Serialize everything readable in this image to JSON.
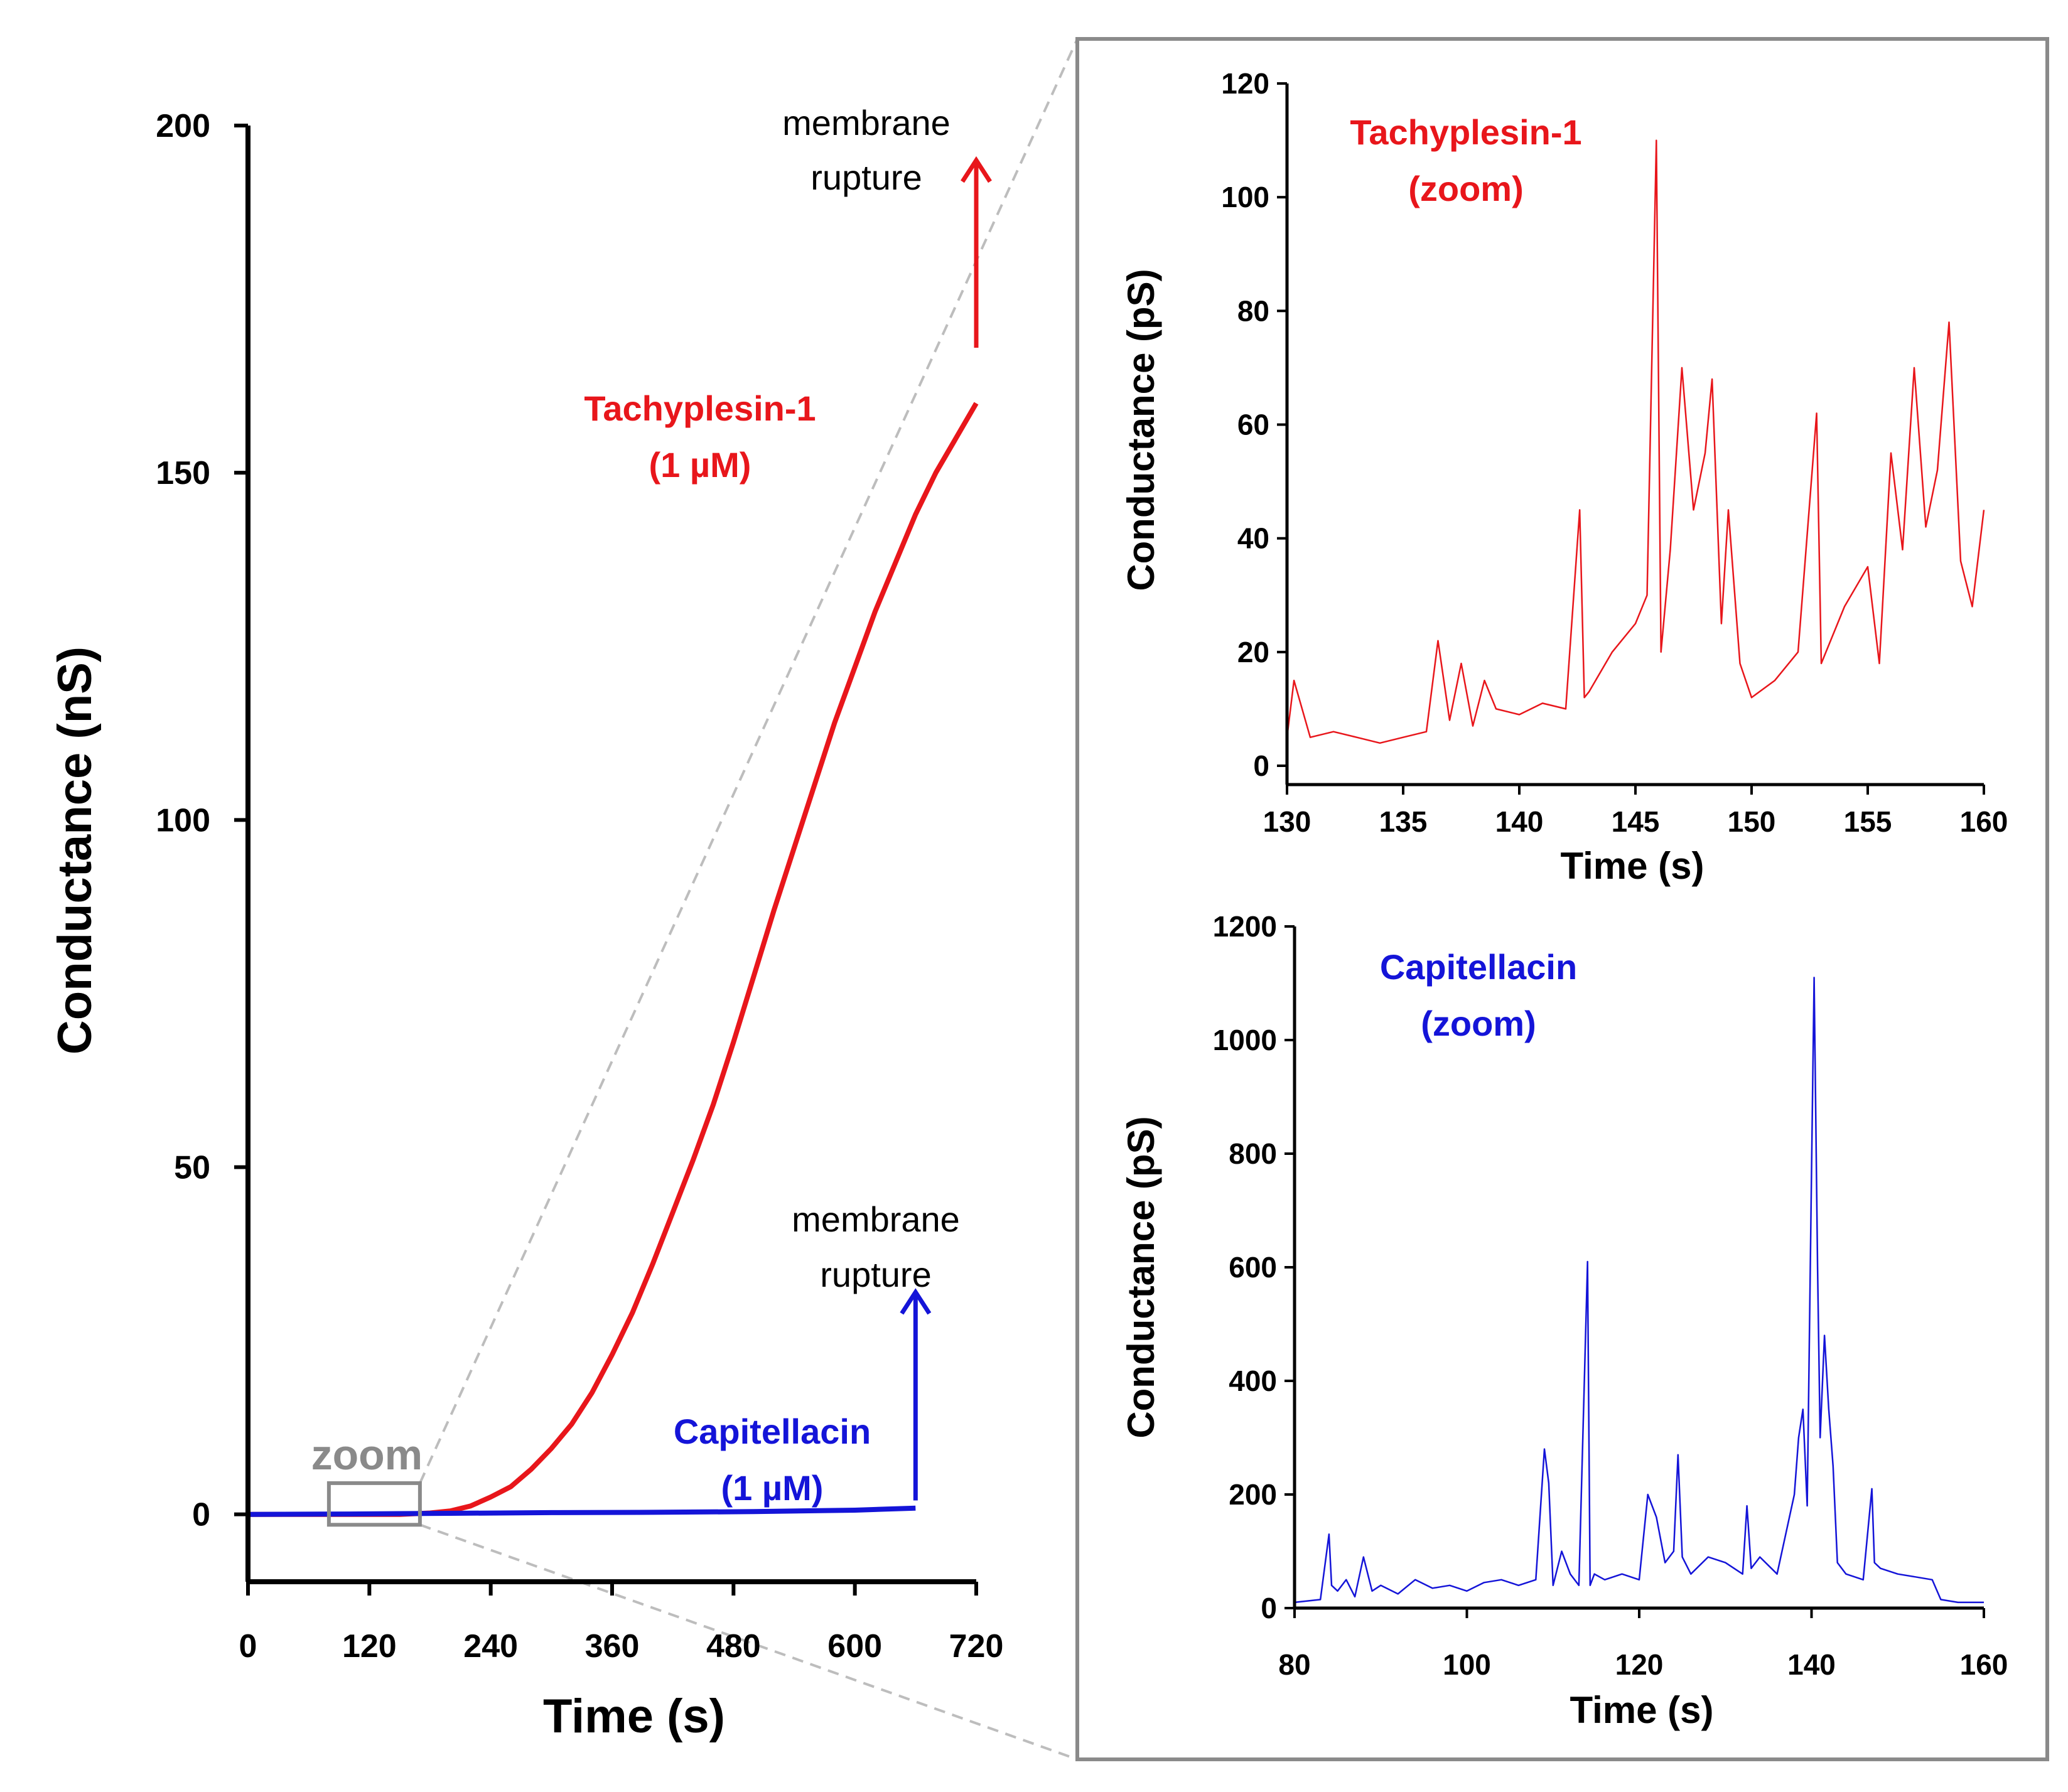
{
  "colors": {
    "tachyplesin": "#e8161b",
    "capitellacin": "#1414d8",
    "axis": "#000000",
    "zoom_box": "#8a8a8a",
    "guide": "#bdbdbd",
    "panel_border": "#8a8a8a"
  },
  "chart_data": [
    {
      "id": "main",
      "type": "line",
      "xlabel": "Time (s)",
      "ylabel": "Conductance (nS)",
      "xlim": [
        0,
        720
      ],
      "ylim": [
        -5,
        200
      ],
      "xticks": [
        0,
        120,
        240,
        360,
        480,
        600,
        720
      ],
      "yticks": [
        0,
        50,
        100,
        150,
        200
      ],
      "series": [
        {
          "name": "Tachyplesin-1",
          "concentration": "(1 µM)",
          "x": [
            0,
            150,
            180,
            200,
            220,
            240,
            260,
            280,
            300,
            320,
            340,
            360,
            380,
            400,
            420,
            440,
            460,
            480,
            500,
            520,
            540,
            560,
            580,
            600,
            620,
            640,
            660,
            680,
            700,
            720
          ],
          "y": [
            0,
            0,
            0.2,
            0.5,
            1.2,
            2.5,
            4,
            6.5,
            9.5,
            13,
            17.5,
            23,
            29,
            36,
            43.5,
            51,
            59,
            68,
            77.5,
            87,
            96,
            105,
            114,
            122,
            130,
            137,
            144,
            150,
            155,
            160
          ]
        },
        {
          "name": "Capitellacin",
          "concentration": "(1 µM)",
          "x": [
            0,
            100,
            200,
            300,
            400,
            500,
            600,
            660
          ],
          "y": [
            0,
            0.05,
            0.15,
            0.25,
            0.3,
            0.4,
            0.6,
            0.9
          ]
        }
      ],
      "annotations": {
        "zoom_label": "zoom",
        "zoom_box": {
          "x": [
            80,
            170
          ],
          "y": [
            -1.5,
            4.5
          ]
        },
        "tachyplesin_rupture": {
          "text_line1": "membrane",
          "text_line2": "rupture",
          "x": 720,
          "y_from": 168,
          "y_to": 195
        },
        "capitellacin_rupture": {
          "text_line1": "membrane",
          "text_line2": "rupture",
          "x": 660,
          "y_from": 2,
          "y_to": 32
        }
      }
    },
    {
      "id": "zoom_tachyplesin",
      "type": "line",
      "xlabel": "Time (s)",
      "ylabel": "Conductance (pS)",
      "xlim": [
        130,
        160
      ],
      "ylim": [
        0,
        120
      ],
      "xticks": [
        130,
        135,
        140,
        145,
        150,
        155,
        160
      ],
      "yticks": [
        0,
        20,
        40,
        60,
        80,
        100,
        120
      ],
      "series": [
        {
          "name": "Tachyplesin-1",
          "label_line2": "(zoom)",
          "x": [
            130,
            130.3,
            131,
            132,
            133,
            134,
            135,
            136,
            136.5,
            137,
            137.5,
            138,
            138.5,
            139,
            140,
            141,
            142,
            142.6,
            142.8,
            143,
            144,
            145,
            145.5,
            145.9,
            146.1,
            146.5,
            147,
            147.5,
            148,
            148.3,
            148.7,
            149,
            149.5,
            150,
            151,
            152,
            152.8,
            153,
            154,
            155,
            155.5,
            156,
            156.5,
            157,
            157.5,
            158,
            158.5,
            159,
            159.5,
            160
          ],
          "y": [
            5,
            15,
            5,
            6,
            5,
            4,
            5,
            6,
            22,
            8,
            18,
            7,
            15,
            10,
            9,
            11,
            10,
            45,
            12,
            13,
            20,
            25,
            30,
            110,
            20,
            38,
            70,
            45,
            55,
            68,
            25,
            45,
            18,
            12,
            15,
            20,
            62,
            18,
            28,
            35,
            18,
            55,
            38,
            70,
            42,
            52,
            78,
            36,
            28,
            45
          ]
        }
      ]
    },
    {
      "id": "zoom_capitellacin",
      "type": "line",
      "xlabel": "Time (s)",
      "ylabel": "Conductance (pS)",
      "xlim": [
        80,
        160
      ],
      "ylim": [
        0,
        1200
      ],
      "xticks": [
        80,
        100,
        120,
        140,
        160
      ],
      "yticks": [
        0,
        200,
        400,
        600,
        800,
        1000,
        1200
      ],
      "series": [
        {
          "name": "Capitellacin",
          "label_line2": "(zoom)",
          "x": [
            80,
            83,
            84,
            84.3,
            85,
            86,
            87,
            88,
            89,
            90,
            92,
            94,
            96,
            98,
            100,
            102,
            104,
            106,
            108,
            109,
            109.5,
            110,
            111,
            112,
            113,
            114,
            114.3,
            114.8,
            116,
            118,
            120,
            121,
            122,
            123,
            124,
            124.5,
            125,
            126,
            128,
            130,
            132,
            132.5,
            133,
            134,
            136,
            138,
            138.5,
            139,
            139.5,
            140,
            140.3,
            140.7,
            141,
            141.5,
            142,
            142.5,
            143,
            144,
            146,
            147,
            147.3,
            148,
            150,
            152,
            154,
            155,
            157,
            160
          ],
          "y": [
            10,
            15,
            130,
            40,
            30,
            50,
            20,
            90,
            30,
            40,
            25,
            50,
            35,
            40,
            30,
            45,
            50,
            40,
            50,
            280,
            220,
            40,
            100,
            60,
            40,
            610,
            40,
            60,
            50,
            60,
            50,
            200,
            160,
            80,
            100,
            270,
            90,
            60,
            90,
            80,
            60,
            180,
            70,
            90,
            60,
            200,
            300,
            350,
            180,
            770,
            1110,
            600,
            300,
            480,
            350,
            250,
            80,
            60,
            50,
            210,
            80,
            70,
            60,
            55,
            50,
            15,
            10,
            10
          ]
        }
      ]
    }
  ]
}
